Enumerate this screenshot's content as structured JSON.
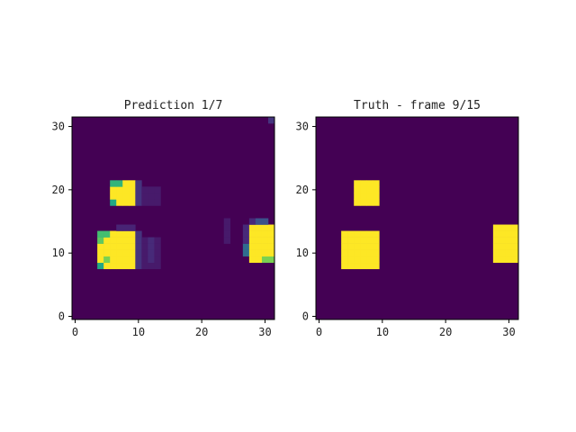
{
  "colors": {
    "background": "#440154",
    "lit": "#fde725",
    "faint": "#482878",
    "mid": "#3b528b",
    "edge": "#35b779",
    "tick_color": "#222222"
  },
  "chart_data": [
    {
      "type": "heatmap",
      "title": "Prediction 1/7",
      "xlabel": "",
      "ylabel": "",
      "grid_size": [
        32,
        32
      ],
      "xlim": [
        -0.5,
        31.5
      ],
      "ylim": [
        -0.5,
        31.5
      ],
      "xticks": [
        "0",
        "10",
        "20",
        "30"
      ],
      "yticks": [
        "0",
        "10",
        "20",
        "30"
      ],
      "vmin": 0,
      "vmax": 1,
      "background_value": 0.0,
      "colormap": "viridis",
      "regions": [
        {
          "x": [
            6,
            9
          ],
          "y": [
            18,
            21
          ],
          "value": 1.0
        },
        {
          "x": [
            6,
            6
          ],
          "y": [
            18,
            18
          ],
          "value": 0.6
        },
        {
          "x": [
            6,
            7
          ],
          "y": [
            21,
            21
          ],
          "value": 0.65
        },
        {
          "x": [
            10,
            10
          ],
          "y": [
            18,
            21
          ],
          "value": 0.15
        },
        {
          "x": [
            11,
            13
          ],
          "y": [
            18,
            20
          ],
          "value": 0.07
        },
        {
          "x": [
            4,
            9
          ],
          "y": [
            8,
            13
          ],
          "value": 1.0
        },
        {
          "x": [
            4,
            4
          ],
          "y": [
            8,
            8
          ],
          "value": 0.6
        },
        {
          "x": [
            4,
            5
          ],
          "y": [
            13,
            13
          ],
          "value": 0.7
        },
        {
          "x": [
            4,
            4
          ],
          "y": [
            12,
            12
          ],
          "value": 0.75
        },
        {
          "x": [
            5,
            5
          ],
          "y": [
            9,
            9
          ],
          "value": 0.8
        },
        {
          "x": [
            10,
            10
          ],
          "y": [
            8,
            13
          ],
          "value": 0.15
        },
        {
          "x": [
            11,
            13
          ],
          "y": [
            8,
            12
          ],
          "value": 0.07
        },
        {
          "x": [
            12,
            12
          ],
          "y": [
            9,
            12
          ],
          "value": 0.12
        },
        {
          "x": [
            7,
            9
          ],
          "y": [
            14,
            14
          ],
          "value": 0.1
        },
        {
          "x": [
            28,
            31
          ],
          "y": [
            9,
            14
          ],
          "value": 1.0
        },
        {
          "x": [
            29,
            30
          ],
          "y": [
            15,
            15
          ],
          "value": 0.25
        },
        {
          "x": [
            28,
            28
          ],
          "y": [
            15,
            15
          ],
          "value": 0.12
        },
        {
          "x": [
            30,
            31
          ],
          "y": [
            9,
            9
          ],
          "value": 0.8
        },
        {
          "x": [
            27,
            27
          ],
          "y": [
            10,
            11
          ],
          "value": 0.35
        },
        {
          "x": [
            27,
            27
          ],
          "y": [
            12,
            14
          ],
          "value": 0.12
        },
        {
          "x": [
            24,
            24
          ],
          "y": [
            12,
            15
          ],
          "value": 0.07
        },
        {
          "x": [
            31,
            31
          ],
          "y": [
            31,
            31
          ],
          "value": 0.15
        }
      ]
    },
    {
      "type": "heatmap",
      "title": "Truth - frame 9/15",
      "xlabel": "",
      "ylabel": "",
      "grid_size": [
        32,
        32
      ],
      "xlim": [
        -0.5,
        31.5
      ],
      "ylim": [
        -0.5,
        31.5
      ],
      "xticks": [
        "0",
        "10",
        "20",
        "30"
      ],
      "yticks": [
        "0",
        "10",
        "20",
        "30"
      ],
      "vmin": 0,
      "vmax": 1,
      "background_value": 0.0,
      "colormap": "viridis",
      "regions": [
        {
          "x": [
            6,
            9
          ],
          "y": [
            18,
            21
          ],
          "value": 1.0
        },
        {
          "x": [
            4,
            9
          ],
          "y": [
            8,
            13
          ],
          "value": 1.0
        },
        {
          "x": [
            28,
            31
          ],
          "y": [
            9,
            14
          ],
          "value": 1.0
        }
      ]
    }
  ]
}
